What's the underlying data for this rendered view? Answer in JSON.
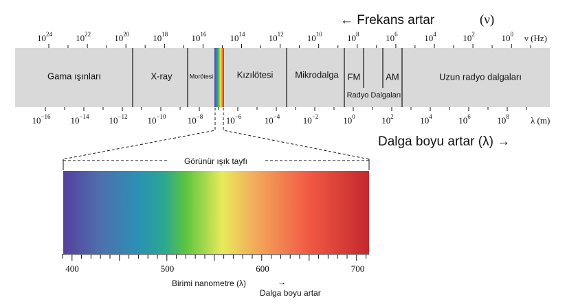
{
  "header": {
    "frequency_label": "← Frekans artar",
    "frequency_symbol": "(ν)",
    "frequency_unit": "ν (Hz)",
    "wavelength_unit": "λ (m)",
    "wavelength_label": "Dalga boyu artar (λ) →"
  },
  "frequency_ticks": [
    {
      "base": "10",
      "exponent": "24"
    },
    {
      "base": "10",
      "exponent": "22"
    },
    {
      "base": "10",
      "exponent": "20"
    },
    {
      "base": "10",
      "exponent": "18"
    },
    {
      "base": "10",
      "exponent": "16"
    },
    {
      "base": "10",
      "exponent": "14"
    },
    {
      "base": "10",
      "exponent": "12"
    },
    {
      "base": "10",
      "exponent": "10"
    },
    {
      "base": "10",
      "exponent": "8"
    },
    {
      "base": "10",
      "exponent": "6"
    },
    {
      "base": "10",
      "exponent": "4"
    },
    {
      "base": "10",
      "exponent": "2"
    },
    {
      "base": "10",
      "exponent": "0"
    }
  ],
  "wavelength_ticks": [
    {
      "base": "10",
      "exponent": "−16"
    },
    {
      "base": "10",
      "exponent": "−14"
    },
    {
      "base": "10",
      "exponent": "−12"
    },
    {
      "base": "10",
      "exponent": "−10"
    },
    {
      "base": "10",
      "exponent": "−8"
    },
    {
      "base": "10",
      "exponent": "−6"
    },
    {
      "base": "10",
      "exponent": "−4"
    },
    {
      "base": "10",
      "exponent": "−2"
    },
    {
      "base": "10",
      "exponent": "0"
    },
    {
      "base": "10",
      "exponent": "2"
    },
    {
      "base": "10",
      "exponent": "4"
    },
    {
      "base": "10",
      "exponent": "6"
    },
    {
      "base": "10",
      "exponent": "8"
    }
  ],
  "regions": {
    "gamma": "Gama ışınları",
    "xray": "X-ray",
    "uv": "Morötesi",
    "ir": "Kızılötesi",
    "microwave": "Mikrodalga",
    "fm": "FM",
    "am": "AM",
    "radio": "Radyo Dalgaları",
    "long_radio": "Uzun radyo dalgaları"
  },
  "visible": {
    "title": "Görünür ışık tayfı",
    "scale": [
      "400",
      "500",
      "600",
      "700"
    ],
    "unit_label": "Birimi nanometre  (λ)",
    "arrow": "→",
    "direction_label": "Dalga boyu artar"
  }
}
